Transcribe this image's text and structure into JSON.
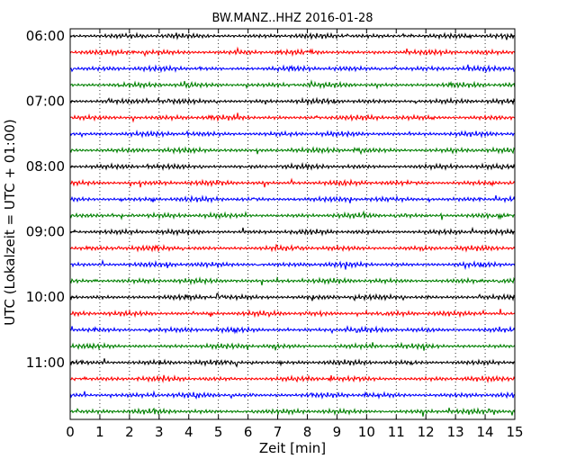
{
  "chart_data": {
    "type": "line",
    "title": "BW.MANZ..HHZ 2016-01-28",
    "xlabel": "Zeit  [min]",
    "ylabel": "UTC (Lokalzeit = UTC + 01:00)",
    "xlim": [
      0,
      15
    ],
    "x_ticks": [
      "0",
      "1",
      "2",
      "3",
      "4",
      "5",
      "6",
      "7",
      "8",
      "9",
      "10",
      "11",
      "12",
      "13",
      "14",
      "15"
    ],
    "y_ticks": [
      "06:00",
      "07:00",
      "08:00",
      "09:00",
      "10:00",
      "11:00"
    ],
    "trace_interval_minutes": 15,
    "first_trace_start": "06:00",
    "trace_count": 24,
    "trace_colors": [
      "#000000",
      "#ff0000",
      "#0000ff",
      "#008000"
    ],
    "grid": "vertical dotted lines at each minute"
  }
}
